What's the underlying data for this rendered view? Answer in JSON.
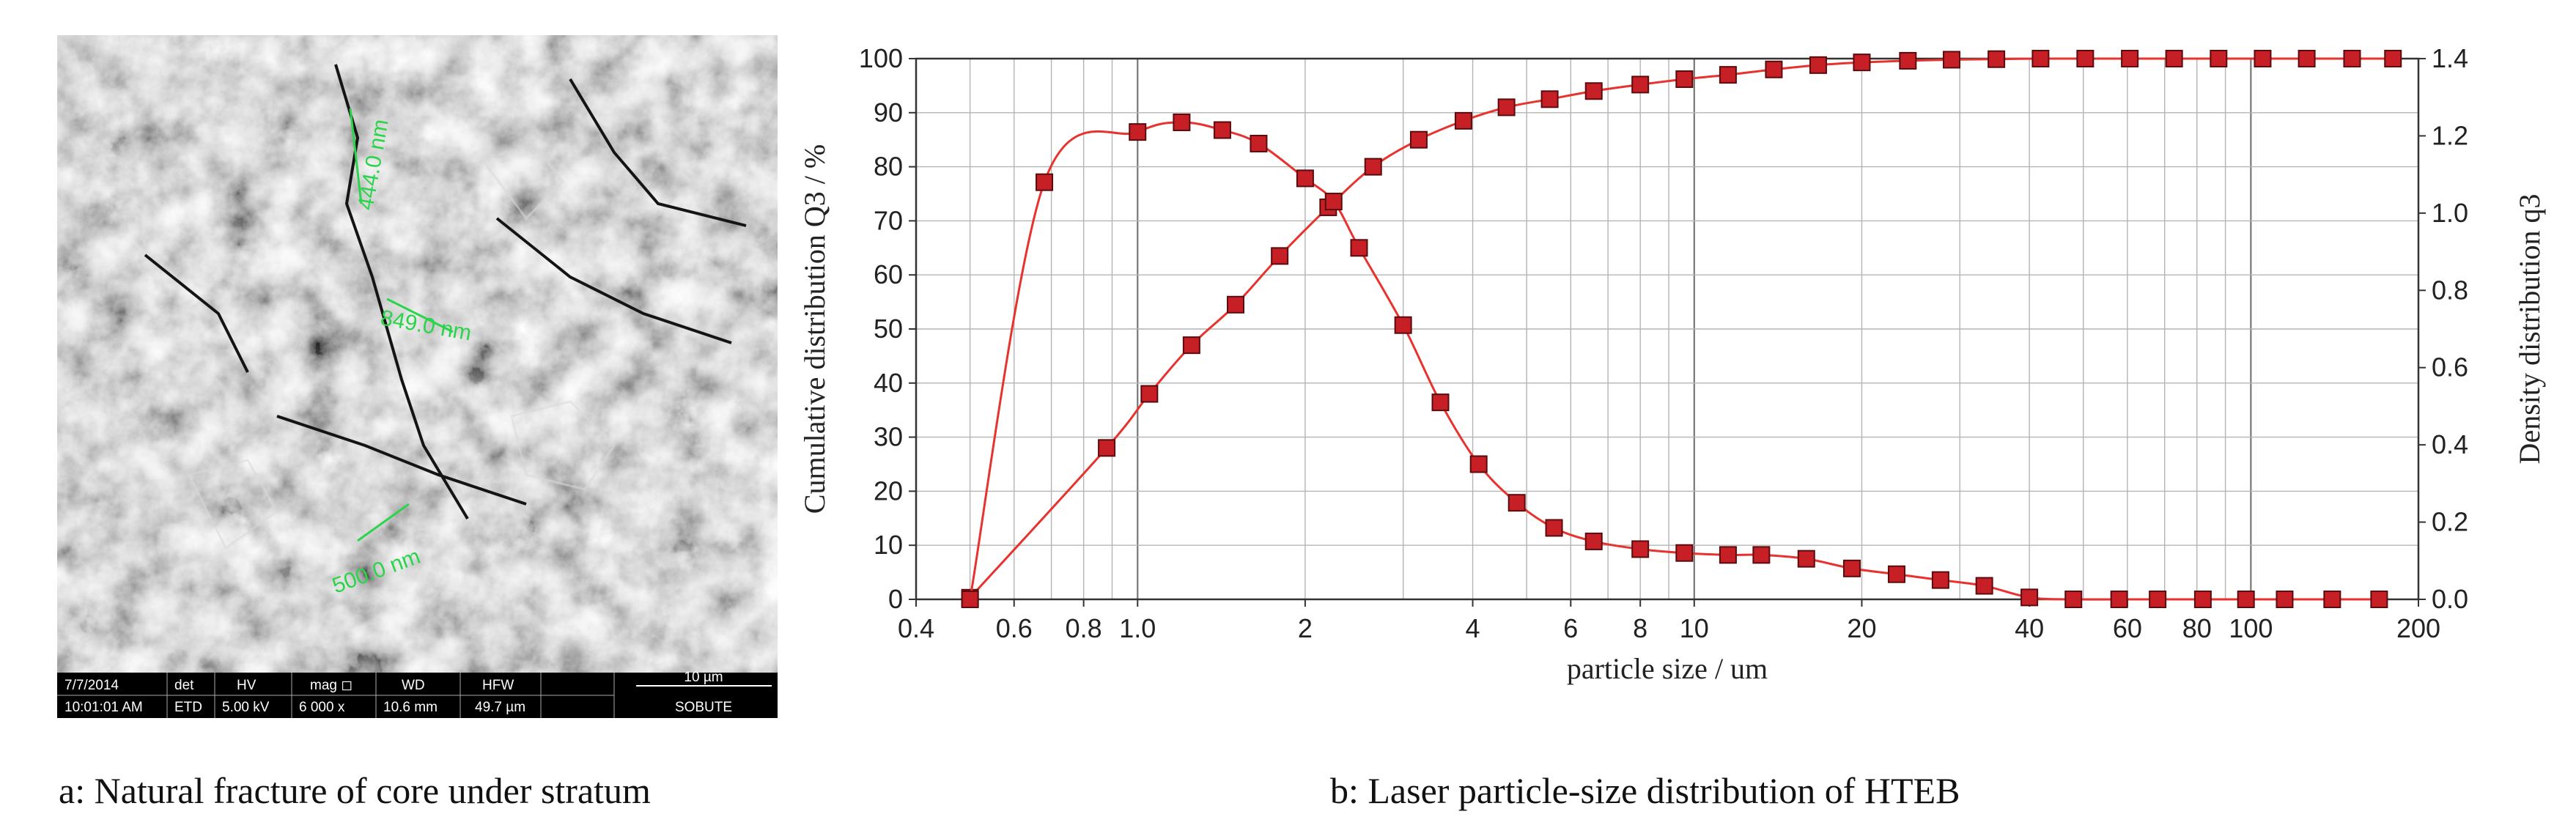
{
  "panel_a": {
    "caption": "a: Natural fracture of core under stratum",
    "image": "sem-micrograph-of-rock-fracture",
    "annotations": [
      "444.0 nm",
      "849.0 nm",
      "500.0 nm"
    ],
    "info_bar": {
      "headers": [
        "7/7/2014",
        "det",
        "HV",
        "mag ◻",
        "WD",
        "HFW"
      ],
      "values": [
        "10:01:01 AM",
        "ETD",
        "5.00 kV",
        "6 000 x",
        "10.6 mm",
        "49.7 µm"
      ],
      "scale_label": "10 µm",
      "org": "SOBUTE"
    }
  },
  "panel_b": {
    "caption": "b: Laser particle-size distribution of HTEB"
  },
  "chart_data": {
    "type": "line",
    "x_scale": "log",
    "xlim": [
      0.4,
      200
    ],
    "x_ticks": [
      0.4,
      0.6,
      0.8,
      1.0,
      2,
      4,
      6,
      8,
      10,
      20,
      40,
      60,
      80,
      100,
      200
    ],
    "x_tick_labels": [
      "0.4",
      "0.6",
      "0.8",
      "1.0",
      "2",
      "4",
      "6",
      "8",
      "10",
      "20",
      "40",
      "60",
      "80",
      "100",
      "200"
    ],
    "xlabel": "particle size / um",
    "ylabel": "Cumulative distribution Q3 / %",
    "ylim": [
      0,
      100
    ],
    "y_ticks": [
      0,
      10,
      20,
      30,
      40,
      50,
      60,
      70,
      80,
      90,
      100
    ],
    "y2label": "Density distribution q3",
    "y2lim": [
      0,
      1.4
    ],
    "y2_ticks": [
      0.0,
      0.2,
      0.4,
      0.6,
      0.8,
      1.0,
      1.2,
      1.4
    ],
    "y2_tick_labels": [
      "0.0",
      "0.2",
      "0.4",
      "0.6",
      "0.8",
      "1.0",
      "1.2",
      "1.4"
    ],
    "grid": true,
    "line_color": "#e8322d",
    "marker_color": "#c62026",
    "series": [
      {
        "axis": "left",
        "x": [
          0.5,
          0.88,
          1.05,
          1.25,
          1.5,
          1.8,
          2.2,
          2.65,
          3.2,
          3.85,
          4.6,
          5.5,
          6.6,
          8.0,
          9.6,
          11.5,
          13.9,
          16.7,
          20,
          24.2,
          29,
          34.9,
          41.9,
          50.4,
          60.6,
          72.8,
          87.5,
          105,
          126,
          152,
          180
        ],
        "y": [
          0.3,
          28,
          38,
          47,
          54.5,
          63.5,
          72.5,
          80,
          85,
          88.5,
          91,
          92.5,
          94,
          95.2,
          96.2,
          97,
          98,
          98.8,
          99.3,
          99.6,
          99.8,
          99.9,
          100,
          100,
          100,
          100,
          100,
          100,
          100,
          100,
          100
        ]
      },
      {
        "axis": "right",
        "x": [
          0.5,
          0.68,
          1.0,
          1.2,
          1.42,
          1.65,
          2.0,
          2.25,
          2.5,
          3.0,
          3.5,
          4.1,
          4.8,
          5.6,
          6.6,
          8.0,
          9.6,
          11.5,
          13.2,
          15.9,
          19.2,
          23.1,
          27.7,
          33.2,
          40,
          48,
          58,
          68,
          82,
          98,
          115,
          140,
          170
        ],
        "y": [
          0.0,
          1.08,
          1.21,
          1.235,
          1.215,
          1.18,
          1.09,
          1.03,
          0.91,
          0.71,
          0.51,
          0.35,
          0.25,
          0.185,
          0.15,
          0.13,
          0.12,
          0.115,
          0.115,
          0.105,
          0.08,
          0.065,
          0.05,
          0.035,
          0.005,
          0.0,
          0.0,
          0.0,
          0.0,
          0.0,
          0.0,
          0.0,
          0.0
        ]
      }
    ]
  }
}
